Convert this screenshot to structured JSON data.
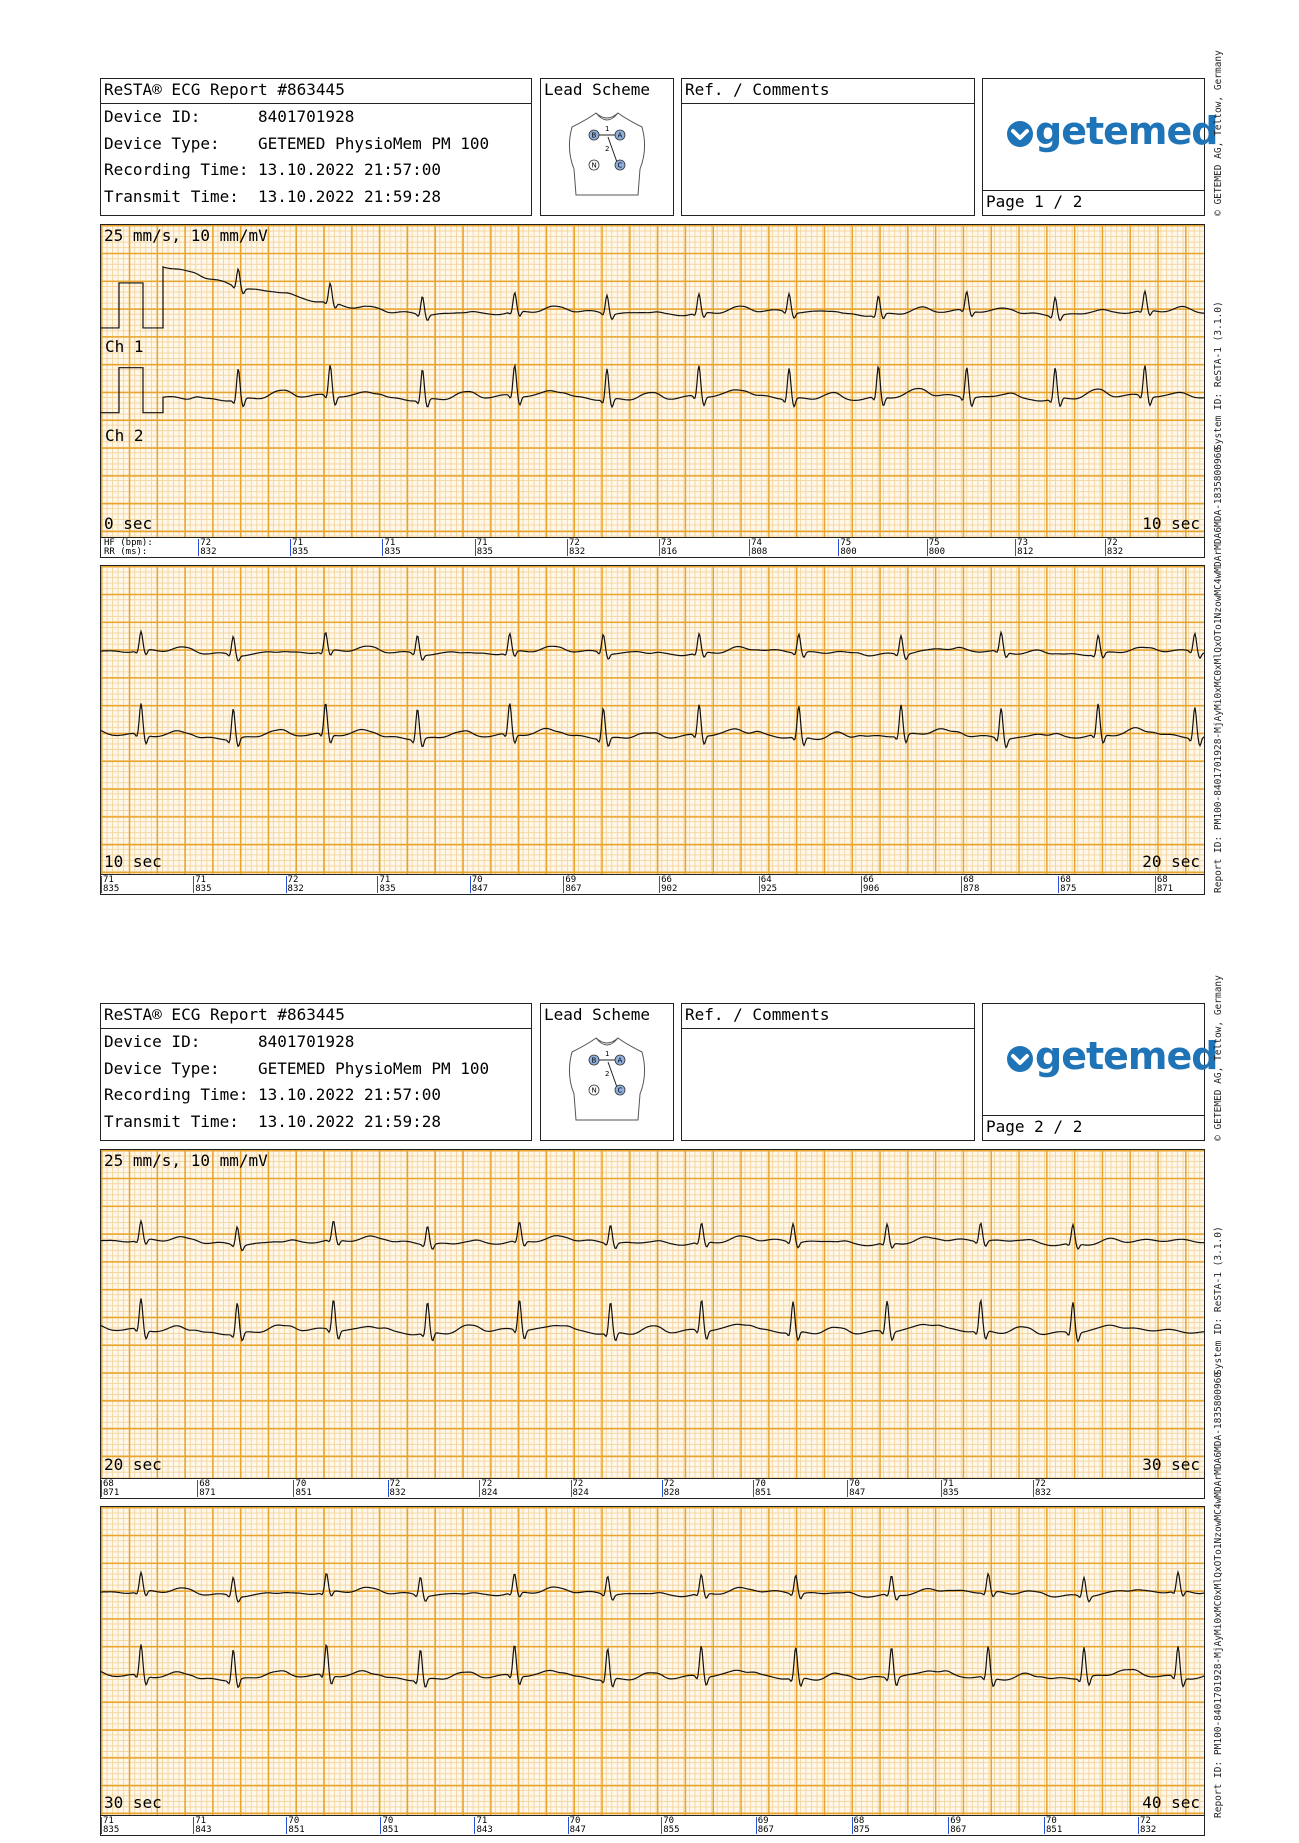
{
  "pages": [
    {
      "report_title": "ReSTA® ECG Report #863445",
      "device_id_label": "Device ID:",
      "device_id": "8401701928",
      "device_type_label": "Device Type:",
      "device_type": "GETEMED PhysioMem PM 100",
      "recording_time_label": "Recording Time:",
      "recording_time": "13.10.2022 21:57:00",
      "transmit_time_label": "Transmit Time:",
      "transmit_time": "13.10.2022 21:59:28",
      "lead_scheme_label": "Lead Scheme",
      "comments_label": "Ref. / Comments",
      "logo_text": "getemed",
      "page_label": "Page 1 / 2",
      "side_top": "© GETEMED AG, Teltow, Germany",
      "side_mid": "System ID: ReSTA-1 (3.1.0)",
      "side_bottom": "Report ID: PM100-8401701928-MjAyMi0xMC0xMlQxOTo1NzowMC4wMDArMDA6MDA-1835800960",
      "strips": [
        {
          "scale_label": "25 mm/s, 10 mm/mV",
          "ch1_label": "Ch 1",
          "ch2_label": "Ch 2",
          "start_label": "0 sec",
          "end_label": "10 sec",
          "hr_legend": [
            "HF (bpm):",
            "RR (ms):"
          ],
          "hr": [
            [
              "72",
              "832"
            ],
            [
              "71",
              "835"
            ],
            [
              "71",
              "835"
            ],
            [
              "71",
              "835"
            ],
            [
              "72",
              "832"
            ],
            [
              "73",
              "816"
            ],
            [
              "74",
              "808"
            ],
            [
              "75",
              "800"
            ],
            [
              "75",
              "800"
            ],
            [
              "73",
              "812"
            ],
            [
              "72",
              "832"
            ]
          ]
        },
        {
          "scale_label": "",
          "ch1_label": "",
          "ch2_label": "",
          "start_label": "10 sec",
          "end_label": "20 sec",
          "hr_legend": [],
          "hr": [
            [
              "71",
              "835"
            ],
            [
              "71",
              "835"
            ],
            [
              "72",
              "832"
            ],
            [
              "71",
              "835"
            ],
            [
              "70",
              "847"
            ],
            [
              "69",
              "867"
            ],
            [
              "66",
              "902"
            ],
            [
              "64",
              "925"
            ],
            [
              "66",
              "906"
            ],
            [
              "68",
              "878"
            ],
            [
              "68",
              "875"
            ],
            [
              "68",
              "871"
            ]
          ]
        }
      ]
    },
    {
      "report_title": "ReSTA® ECG Report #863445",
      "device_id_label": "Device ID:",
      "device_id": "8401701928",
      "device_type_label": "Device Type:",
      "device_type": "GETEMED PhysioMem PM 100",
      "recording_time_label": "Recording Time:",
      "recording_time": "13.10.2022 21:57:00",
      "transmit_time_label": "Transmit Time:",
      "transmit_time": "13.10.2022 21:59:28",
      "lead_scheme_label": "Lead Scheme",
      "comments_label": "Ref. / Comments",
      "logo_text": "getemed",
      "page_label": "Page 2 / 2",
      "side_top": "© GETEMED AG, Teltow, Germany",
      "side_mid": "System ID: ReSTA-1 (3.1.0)",
      "side_bottom": "Report ID: PM100-8401701928-MjAyMi0xMC0xMlQxOTo1NzowMC4wMDArMDA6MDA-1835800960",
      "strips": [
        {
          "scale_label": "25 mm/s, 10 mm/mV",
          "ch1_label": "",
          "ch2_label": "",
          "start_label": "20 sec",
          "end_label": "30 sec",
          "hr_legend": [],
          "hr": [
            [
              "68",
              "871"
            ],
            [
              "68",
              "871"
            ],
            [
              "70",
              "851"
            ],
            [
              "72",
              "832"
            ],
            [
              "72",
              "824"
            ],
            [
              "72",
              "824"
            ],
            [
              "72",
              "828"
            ],
            [
              "70",
              "851"
            ],
            [
              "70",
              "847"
            ],
            [
              "71",
              "835"
            ],
            [
              "72",
              "832"
            ]
          ]
        },
        {
          "scale_label": "",
          "ch1_label": "",
          "ch2_label": "",
          "start_label": "30 sec",
          "end_label": "40 sec",
          "hr_legend": [],
          "hr": [
            [
              "71",
              "835"
            ],
            [
              "71",
              "843"
            ],
            [
              "70",
              "851"
            ],
            [
              "70",
              "851"
            ],
            [
              "71",
              "843"
            ],
            [
              "70",
              "847"
            ],
            [
              "70",
              "855"
            ],
            [
              "69",
              "867"
            ],
            [
              "68",
              "875"
            ],
            [
              "69",
              "867"
            ],
            [
              "70",
              "851"
            ],
            [
              "72",
              "832"
            ]
          ]
        }
      ]
    }
  ]
}
